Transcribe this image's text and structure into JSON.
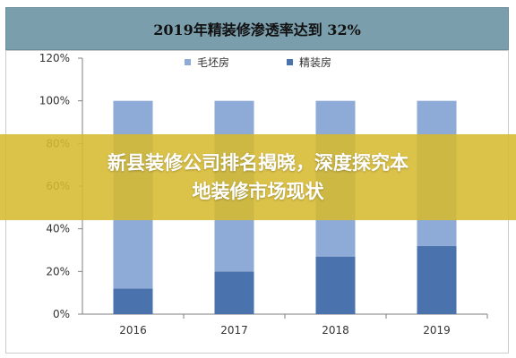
{
  "banner": {
    "line1": "新县装修公司排名揭晓，深度探究本",
    "line2": "地装修市场现状"
  },
  "chart_data": {
    "type": "bar",
    "stacked": true,
    "title": "2019年精装修渗透率达到  32%",
    "categories": [
      "2016",
      "2017",
      "2018",
      "2019"
    ],
    "series": [
      {
        "name": "毛坯房",
        "values": [
          88,
          80,
          73,
          68
        ],
        "color": "#8eaad6"
      },
      {
        "name": "精装房",
        "values": [
          12,
          20,
          27,
          32
        ],
        "color": "#4a72ad"
      }
    ],
    "ylim": [
      0,
      120
    ],
    "yticks": [
      "0%",
      "20%",
      "40%",
      "60%",
      "80%",
      "100%",
      "120%"
    ],
    "ytick_values": [
      0,
      20,
      40,
      60,
      80,
      100,
      120
    ],
    "grid": false,
    "legend_position": "top"
  }
}
